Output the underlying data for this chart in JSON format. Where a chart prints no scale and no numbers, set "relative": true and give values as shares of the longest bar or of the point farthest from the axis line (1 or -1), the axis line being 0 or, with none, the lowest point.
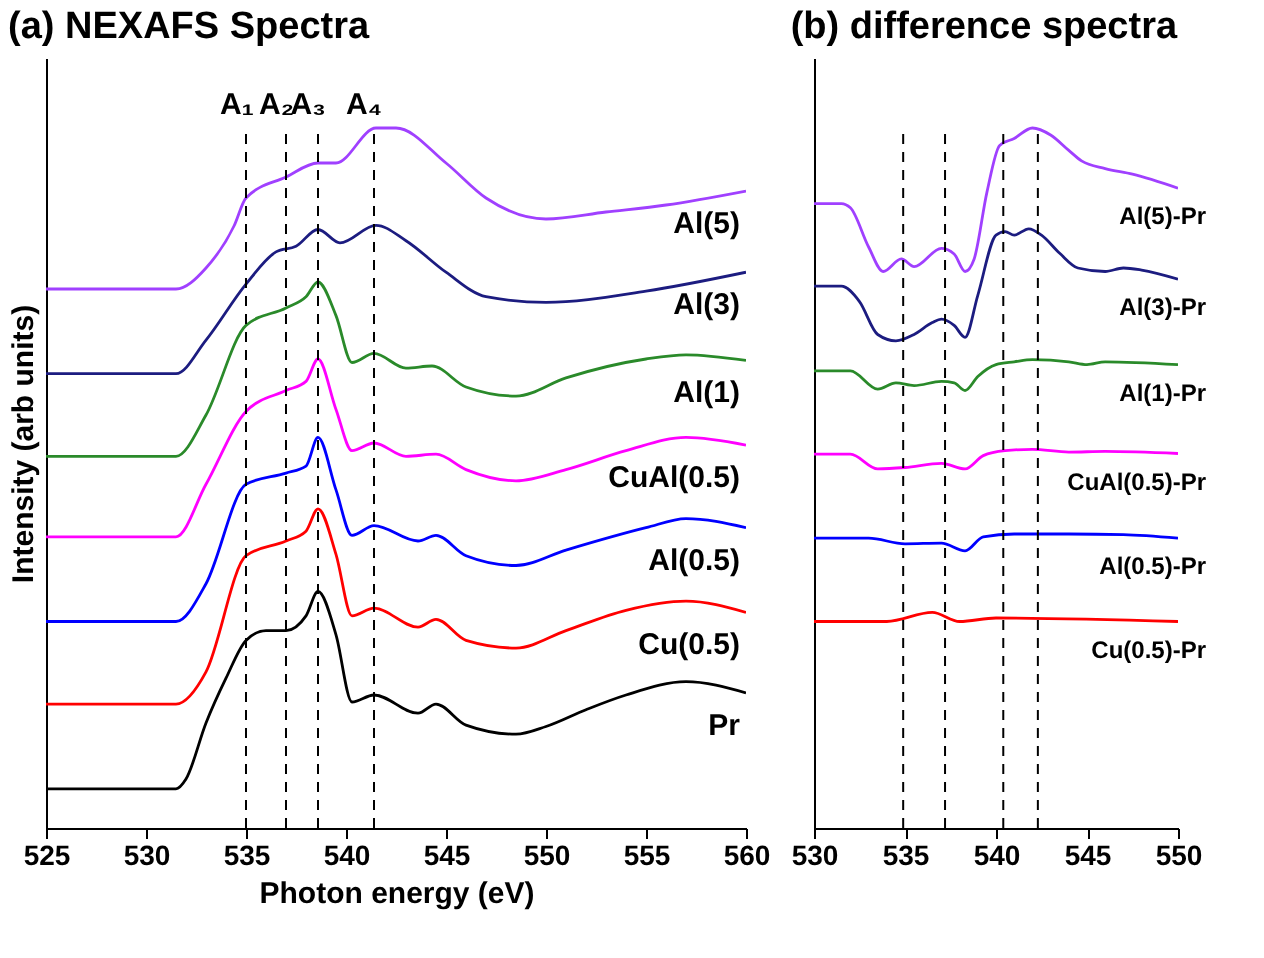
{
  "chart_data": [
    {
      "type": "line",
      "title": "(a) NEXAFS Spectra",
      "xlabel": "Photon energy (eV)",
      "ylabel": "Intensity (arb units)",
      "relative": true,
      "xlim": [
        525,
        560
      ],
      "xticks": [
        525,
        530,
        535,
        540,
        545,
        550,
        555,
        560
      ],
      "series": [
        {
          "name": "Al(5)",
          "color": "#a040ff",
          "x": [
            525,
            531.5,
            533,
            534.4,
            535,
            537,
            538.6,
            539.5,
            541.5,
            542.5,
            545,
            547,
            550,
            553,
            556,
            560
          ],
          "values": [
            0.77,
            0.77,
            0.8,
            0.86,
            0.9,
            0.93,
            0.95,
            0.95,
            1.0,
            1.0,
            0.95,
            0.9,
            0.87,
            0.88,
            0.89,
            0.91
          ]
        },
        {
          "name": "Al(3)",
          "color": "#1c1c80",
          "x": [
            525,
            531.5,
            533,
            535,
            536.5,
            537.5,
            538.6,
            539.7,
            541.5,
            543,
            545,
            547,
            550,
            555,
            560
          ],
          "values": [
            0.649,
            0.649,
            0.697,
            0.777,
            0.823,
            0.831,
            0.855,
            0.836,
            0.861,
            0.839,
            0.794,
            0.759,
            0.751,
            0.767,
            0.794
          ]
        },
        {
          "name": "Al(1)",
          "color": "#2a8a2a",
          "x": [
            525,
            531.5,
            533,
            535,
            537,
            538,
            538.6,
            539.5,
            540.3,
            541.4,
            543,
            544.3,
            546,
            548.5,
            551,
            555,
            557,
            560
          ],
          "values": [
            0.531,
            0.531,
            0.59,
            0.718,
            0.743,
            0.759,
            0.78,
            0.732,
            0.665,
            0.678,
            0.657,
            0.66,
            0.63,
            0.617,
            0.643,
            0.67,
            0.676,
            0.668
          ]
        },
        {
          "name": "CuAl(0.5)",
          "color": "#ff00ff",
          "x": [
            525,
            531.5,
            533,
            535,
            537,
            538,
            538.6,
            539.5,
            540.3,
            541.4,
            543,
            544.5,
            546,
            548.5,
            551,
            554,
            557,
            560
          ],
          "values": [
            0.416,
            0.416,
            0.491,
            0.595,
            0.625,
            0.638,
            0.67,
            0.598,
            0.539,
            0.55,
            0.531,
            0.534,
            0.512,
            0.496,
            0.512,
            0.539,
            0.558,
            0.547
          ]
        },
        {
          "name": "Al(0.5)",
          "color": "#0000ff",
          "x": [
            525,
            531.5,
            533,
            535,
            537,
            538,
            538.6,
            539.5,
            540.3,
            541.4,
            543.6,
            544.5,
            546,
            548.5,
            551,
            555,
            557,
            560
          ],
          "values": [
            0.295,
            0.295,
            0.349,
            0.491,
            0.507,
            0.517,
            0.558,
            0.483,
            0.418,
            0.432,
            0.41,
            0.418,
            0.389,
            0.375,
            0.397,
            0.429,
            0.442,
            0.429
          ]
        },
        {
          "name": "Cu(0.5)",
          "color": "#ff0000",
          "x": [
            525,
            531.5,
            533,
            535,
            537,
            538,
            538.6,
            539.5,
            540.3,
            541.4,
            543.6,
            544.5,
            546,
            548.5,
            551,
            554,
            557,
            560
          ],
          "values": [
            0.177,
            0.177,
            0.223,
            0.389,
            0.41,
            0.424,
            0.456,
            0.391,
            0.303,
            0.314,
            0.287,
            0.298,
            0.268,
            0.257,
            0.282,
            0.311,
            0.324,
            0.308
          ]
        },
        {
          "name": "Pr",
          "color": "#000000",
          "x": [
            525,
            531.5,
            532,
            533,
            534,
            535,
            536,
            537,
            538,
            538.6,
            539.5,
            540.3,
            541.4,
            543.6,
            544.5,
            546,
            548.5,
            550,
            552,
            554,
            557,
            560
          ],
          "values": [
            0.056,
            0.056,
            0.07,
            0.15,
            0.214,
            0.268,
            0.282,
            0.282,
            0.303,
            0.338,
            0.276,
            0.18,
            0.19,
            0.164,
            0.177,
            0.147,
            0.134,
            0.145,
            0.169,
            0.19,
            0.209,
            0.193
          ]
        }
      ],
      "ref_lines": [
        {
          "axis": "x",
          "value": 535,
          "line_style": "dashed",
          "label": "A₁"
        },
        {
          "axis": "x",
          "value": 537,
          "line_style": "dashed",
          "label": "A₂"
        },
        {
          "axis": "x",
          "value": 538.6,
          "line_style": "dashed",
          "label": "A₃"
        },
        {
          "axis": "x",
          "value": 541.4,
          "line_style": "dashed",
          "label": "A₄"
        }
      ]
    },
    {
      "type": "line",
      "title": "(b) difference spectra",
      "relative": true,
      "xlim": [
        530,
        550
      ],
      "xticks": [
        530,
        535,
        540,
        545,
        550
      ],
      "series": [
        {
          "name": "Al(5)-Pr",
          "color": "#a040ff",
          "x": [
            530,
            531.5,
            532,
            533,
            533.8,
            534.8,
            535.5,
            537,
            537.7,
            538.3,
            538.8,
            539.5,
            540.2,
            541,
            542,
            543,
            544,
            544.7,
            546,
            547.5,
            550
          ],
          "values": [
            0.892,
            0.892,
            0.886,
            0.83,
            0.795,
            0.813,
            0.802,
            0.828,
            0.82,
            0.795,
            0.813,
            0.908,
            0.975,
            0.985,
            1.0,
            0.99,
            0.968,
            0.953,
            0.942,
            0.934,
            0.914
          ]
        },
        {
          "name": "Al(3)-Pr",
          "color": "#1c1c80",
          "x": [
            530,
            531.5,
            532.5,
            533.5,
            534.5,
            535.5,
            536.5,
            537,
            537.7,
            538.3,
            539,
            540,
            540.5,
            541,
            541.8,
            542.5,
            543.5,
            544.5,
            546,
            547,
            548,
            550
          ],
          "values": [
            0.774,
            0.774,
            0.752,
            0.705,
            0.696,
            0.705,
            0.722,
            0.727,
            0.718,
            0.701,
            0.761,
            0.847,
            0.852,
            0.847,
            0.856,
            0.847,
            0.821,
            0.8,
            0.795,
            0.8,
            0.797,
            0.784
          ]
        },
        {
          "name": "Al(1)-Pr",
          "color": "#2a8a2a",
          "x": [
            530,
            532,
            533.5,
            534.5,
            535.5,
            537,
            537.7,
            538.3,
            539,
            540,
            541,
            542,
            544,
            545,
            546,
            550
          ],
          "values": [
            0.653,
            0.653,
            0.627,
            0.636,
            0.632,
            0.638,
            0.636,
            0.625,
            0.645,
            0.662,
            0.666,
            0.669,
            0.666,
            0.662,
            0.666,
            0.662
          ]
        },
        {
          "name": "CuAl(0.5)-Pr",
          "color": "#ff00ff",
          "x": [
            530,
            532,
            533.5,
            535,
            537,
            538.3,
            539.3,
            540.5,
            542,
            544,
            546,
            550
          ],
          "values": [
            0.534,
            0.534,
            0.513,
            0.515,
            0.521,
            0.513,
            0.532,
            0.539,
            0.541,
            0.537,
            0.538,
            0.535
          ]
        },
        {
          "name": "Al(0.5)-Pr",
          "color": "#0000ff",
          "x": [
            530,
            533,
            535,
            537,
            538.3,
            539.3,
            541,
            544,
            547,
            550
          ],
          "values": [
            0.414,
            0.414,
            0.406,
            0.407,
            0.396,
            0.416,
            0.42,
            0.42,
            0.419,
            0.414
          ]
        },
        {
          "name": "Cu(0.5)-Pr",
          "color": "#ff0000",
          "x": [
            530,
            534,
            536.5,
            538,
            540,
            550
          ],
          "values": [
            0.295,
            0.295,
            0.308,
            0.295,
            0.3,
            0.295
          ]
        }
      ],
      "ref_lines": [
        {
          "axis": "x",
          "value": 534.9,
          "line_style": "dashed"
        },
        {
          "axis": "x",
          "value": 537.2,
          "line_style": "dashed"
        },
        {
          "axis": "x",
          "value": 540.4,
          "line_style": "dashed"
        },
        {
          "axis": "x",
          "value": 542.3,
          "line_style": "dashed"
        }
      ]
    }
  ]
}
